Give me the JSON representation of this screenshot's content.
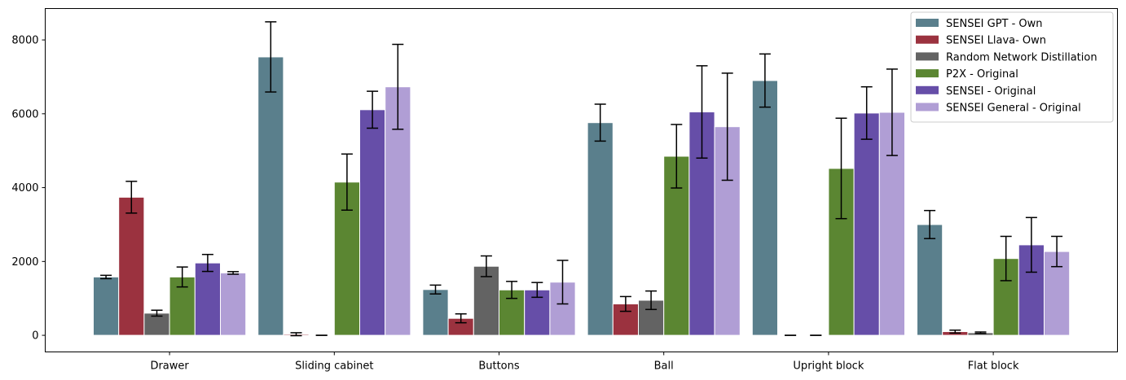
{
  "chart_data": {
    "type": "bar",
    "title": "",
    "xlabel": "",
    "ylabel": "",
    "ylim": [
      -450,
      8850
    ],
    "yticks": [
      0,
      2000,
      4000,
      6000,
      8000
    ],
    "ytick_labels": [
      "0",
      "2000",
      "4000",
      "6000",
      "8000"
    ],
    "grid": false,
    "legend_position": "top-right",
    "categories": [
      "Drawer",
      "Sliding cabinet",
      "Buttons",
      "Ball",
      "Upright block",
      "Flat block"
    ],
    "series": [
      {
        "name": "SENSEI GPT - Own",
        "color": "#5a7f8c",
        "values": [
          1580,
          7540,
          1240,
          5760,
          6900,
          3000
        ],
        "errors": [
          45,
          950,
          120,
          500,
          720,
          380
        ]
      },
      {
        "name": "SENSEI Llava- Own",
        "color": "#9b323f",
        "values": [
          3740,
          30,
          460,
          850,
          0,
          100
        ],
        "errors": [
          430,
          40,
          120,
          200,
          0,
          40
        ]
      },
      {
        "name": "Random Network Distillation",
        "color": "#636363",
        "values": [
          600,
          0,
          1870,
          950,
          0,
          70
        ],
        "errors": [
          80,
          0,
          280,
          250,
          0,
          20
        ]
      },
      {
        "name": "P2X - Original",
        "color": "#5b8632",
        "values": [
          1580,
          4150,
          1230,
          4850,
          4520,
          2080
        ],
        "errors": [
          270,
          760,
          230,
          860,
          1360,
          600
        ]
      },
      {
        "name": "SENSEI - Original",
        "color": "#664ea8",
        "values": [
          1960,
          6110,
          1230,
          6050,
          6020,
          2450
        ],
        "errors": [
          230,
          500,
          200,
          1250,
          710,
          740
        ]
      },
      {
        "name": "SENSEI General - Original",
        "color": "#b09ed5",
        "values": [
          1690,
          6730,
          1440,
          5650,
          6040,
          2270
        ],
        "errors": [
          35,
          1150,
          590,
          1450,
          1170,
          410
        ]
      }
    ]
  }
}
